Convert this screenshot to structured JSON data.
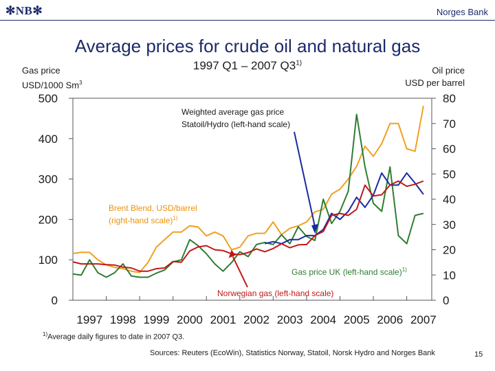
{
  "header": {
    "logo_text": "NB",
    "bank_name": "Norges Bank"
  },
  "colors": {
    "brand": "#1c2a6b",
    "gas_uk": "#2e7d32",
    "brent": "#f0a020",
    "weighted": "#1a2aa0",
    "norwegian": "#c01818"
  },
  "footnote": {
    "marker": "1)",
    "text": "Average daily figures to date in 2007 Q3."
  },
  "sources": "Sources: Reuters (EcoWin), Statistics Norway, Statoil, Norsk Hydro and Norges Bank",
  "page_number": "15",
  "chart_data": {
    "type": "line",
    "title": "Average prices for crude oil and natural gas",
    "subtitle": "1997 Q1 – 2007 Q3",
    "subtitle_sup": "1)",
    "left_axis": {
      "label_line1": "Gas price",
      "label_line2": "USD/1000 Sm",
      "label_sup": "3",
      "range": [
        0,
        500
      ],
      "ticks": [
        0,
        100,
        200,
        300,
        400,
        500
      ]
    },
    "right_axis": {
      "label_line1": "Oil price",
      "label_line2": "USD per barrel",
      "range": [
        0,
        80
      ],
      "ticks": [
        0,
        10,
        20,
        30,
        40,
        50,
        60,
        70,
        80
      ]
    },
    "x_range": [
      1997,
      2007.75
    ],
    "x_tick_labels": [
      "1997",
      "1998",
      "1999",
      "2000",
      "2001",
      "2002",
      "2003",
      "2004",
      "2005",
      "2006",
      "2007"
    ],
    "annotations": [
      {
        "id": "weighted",
        "line1": "Weighted average gas price",
        "line2": "Statoil/Hydro (left-hand scale)",
        "target_x": 2004.25,
        "target_y": 165
      },
      {
        "id": "brent",
        "line1": "Brent Blend, USD/barrel",
        "line2": "(right-hand scale)",
        "sup": "1)"
      },
      {
        "id": "gas_uk",
        "line1": "Gas price UK (left-hand scale)",
        "sup": "1)"
      },
      {
        "id": "norwegian",
        "line1": "Norwegian gas (left-hand scale)",
        "target_x": 2001.75,
        "target_y": 125
      }
    ],
    "series": [
      {
        "name": "Brent Blend, USD/barrel (right-hand scale)",
        "axis": "right",
        "color": "#f0a020",
        "x": [
          1997,
          1997.25,
          1997.5,
          1997.75,
          1998,
          1998.25,
          1998.5,
          1998.75,
          1999,
          1999.25,
          1999.5,
          1999.75,
          2000,
          2000.25,
          2000.5,
          2000.75,
          2001,
          2001.25,
          2001.5,
          2001.75,
          2002,
          2002.25,
          2002.5,
          2002.75,
          2003,
          2003.25,
          2003.5,
          2003.75,
          2004,
          2004.25,
          2004.5,
          2004.75,
          2005,
          2005.25,
          2005.5,
          2005.75,
          2006,
          2006.25,
          2006.5,
          2006.75,
          2007,
          2007.25,
          2007.5
        ],
        "values": [
          18.5,
          19,
          19,
          16,
          14,
          13,
          12.5,
          11.5,
          11,
          15,
          21,
          24,
          27,
          27,
          29.5,
          29,
          25.5,
          27,
          25.5,
          20,
          21,
          25.5,
          26.5,
          26.5,
          31,
          26,
          28.5,
          29.5,
          31,
          35,
          36,
          42,
          44,
          48,
          53,
          61,
          57,
          62,
          70,
          70,
          60,
          59,
          77
        ]
      },
      {
        "name": "Gas price UK (left-hand scale)",
        "axis": "left",
        "color": "#2e7d32",
        "x": [
          1997,
          1997.25,
          1997.5,
          1997.75,
          1998,
          1998.25,
          1998.5,
          1998.75,
          1999,
          1999.25,
          1999.5,
          1999.75,
          2000,
          2000.25,
          2000.5,
          2000.75,
          2001,
          2001.25,
          2001.5,
          2001.75,
          2002,
          2002.25,
          2002.5,
          2002.75,
          2003,
          2003.25,
          2003.5,
          2003.75,
          2004,
          2004.25,
          2004.5,
          2004.75,
          2005,
          2005.25,
          2005.5,
          2005.75,
          2006,
          2006.25,
          2006.5,
          2006.75,
          2007,
          2007.25,
          2007.5
        ],
        "values": [
          65,
          62,
          100,
          68,
          57,
          68,
          90,
          60,
          57,
          57,
          67,
          75,
          95,
          100,
          150,
          135,
          115,
          90,
          72,
          93,
          120,
          108,
          138,
          143,
          138,
          162,
          140,
          182,
          158,
          148,
          250,
          190,
          220,
          270,
          460,
          330,
          240,
          220,
          330,
          160,
          140,
          210,
          215
        ]
      },
      {
        "name": "Weighted average gas price Statoil/Hydro (left-hand scale)",
        "axis": "left",
        "color": "#1a2aa0",
        "x": [
          2002.75,
          2003,
          2003.25,
          2003.5,
          2003.75,
          2004,
          2004.25,
          2004.5,
          2004.75,
          2005,
          2005.25,
          2005.5,
          2005.75,
          2006,
          2006.25,
          2006.5,
          2006.75,
          2007,
          2007.25,
          2007.5
        ],
        "values": [
          140,
          145,
          140,
          150,
          150,
          160,
          160,
          175,
          215,
          200,
          220,
          255,
          230,
          260,
          315,
          285,
          285,
          315,
          290,
          262
        ]
      },
      {
        "name": "Norwegian gas (left-hand scale)",
        "axis": "left",
        "color": "#c01818",
        "x": [
          1997,
          1997.25,
          1997.5,
          1997.75,
          1998,
          1998.25,
          1998.5,
          1998.75,
          1999,
          1999.25,
          1999.5,
          1999.75,
          2000,
          2000.25,
          2000.5,
          2000.75,
          2001,
          2001.25,
          2001.5,
          2001.75,
          2002,
          2002.25,
          2002.5,
          2002.75,
          2003,
          2003.25,
          2003.5,
          2003.75,
          2004,
          2004.25,
          2004.5,
          2004.75,
          2005,
          2005.25,
          2005.5,
          2005.75,
          2006,
          2006.25,
          2006.5,
          2006.75,
          2007,
          2007.25,
          2007.5
        ],
        "values": [
          95,
          90,
          90,
          90,
          88,
          87,
          82,
          80,
          72,
          72,
          78,
          80,
          96,
          94,
          122,
          132,
          135,
          125,
          123,
          115,
          113,
          118,
          127,
          120,
          128,
          140,
          130,
          137,
          138,
          160,
          170,
          210,
          215,
          210,
          225,
          285,
          258,
          261,
          285,
          295,
          282,
          287,
          295
        ]
      }
    ]
  }
}
